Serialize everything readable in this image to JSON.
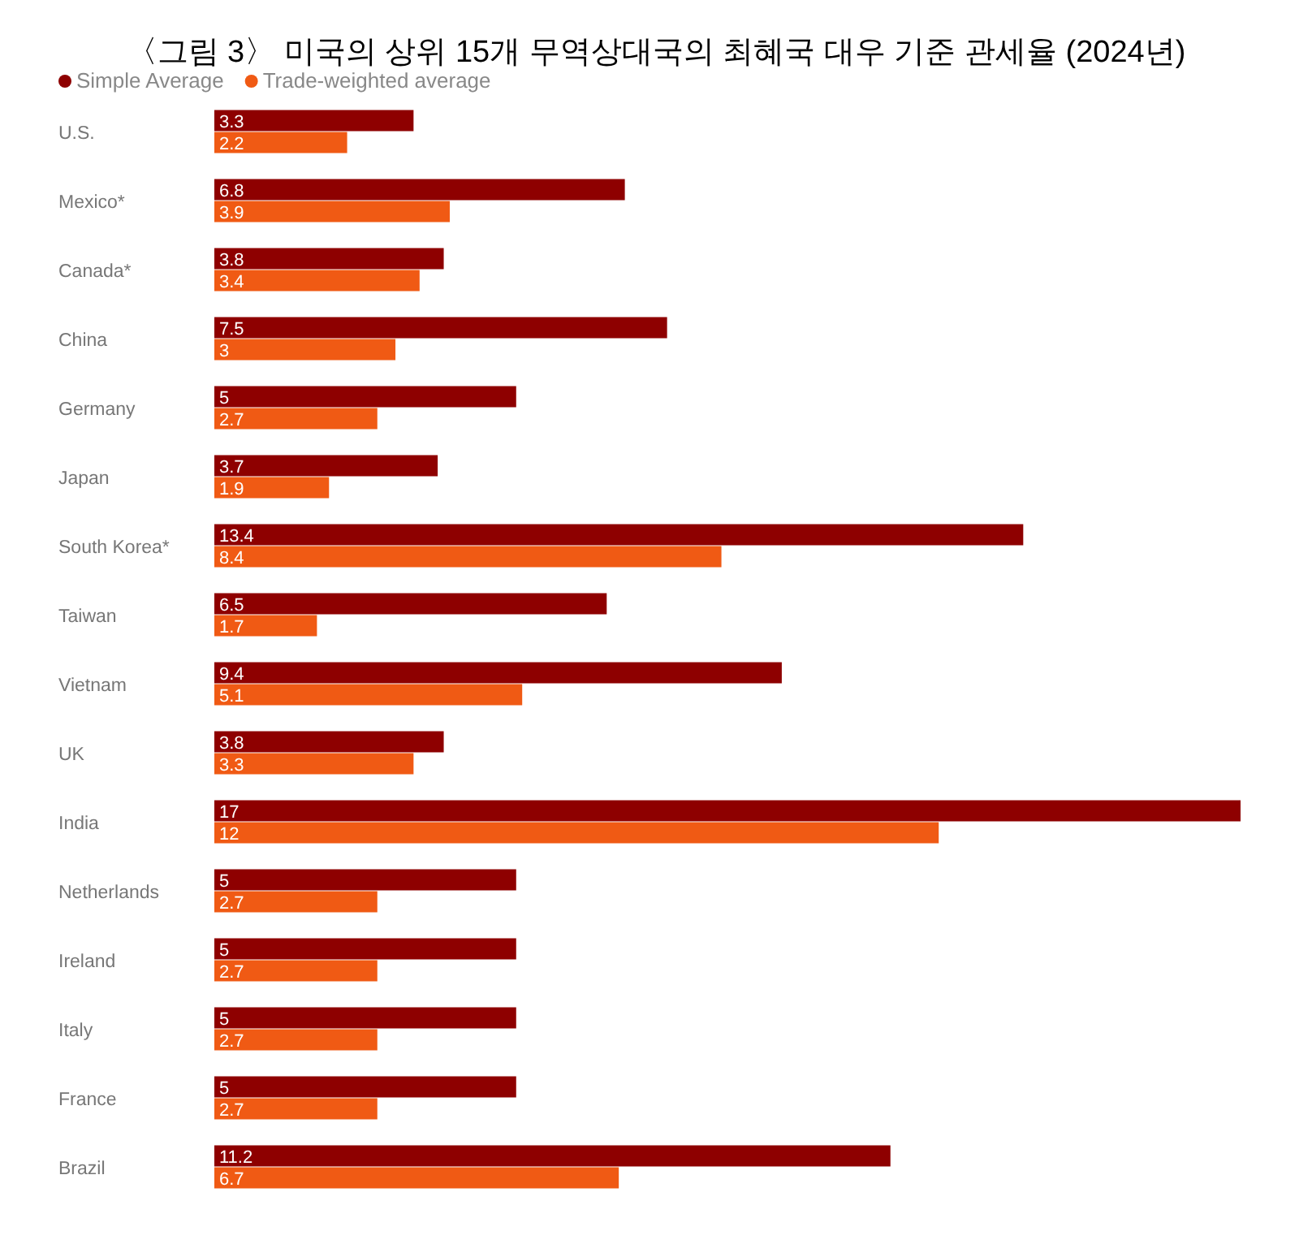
{
  "chart_data": {
    "type": "bar",
    "orientation": "horizontal",
    "title": "〈그림 3〉 미국의 상위 15개 무역상대국의 최혜국 대우 기준 관세율 (2024년)",
    "categories": [
      "U.S.",
      "Mexico*",
      "Canada*",
      "China",
      "Germany",
      "Japan",
      "South Korea*",
      "Taiwan",
      "Vietnam",
      "UK",
      "India",
      "Netherlands",
      "Ireland",
      "Italy",
      "France",
      "Brazil"
    ],
    "series": [
      {
        "name": "Simple Average",
        "color": "#8e0000",
        "values": [
          3.3,
          6.8,
          3.8,
          7.5,
          5,
          3.7,
          13.4,
          6.5,
          9.4,
          3.8,
          17,
          5,
          5,
          5,
          5,
          11.2
        ]
      },
      {
        "name": "Trade-weighted average",
        "color": "#f05a14",
        "values": [
          2.2,
          3.9,
          3.4,
          3,
          2.7,
          1.9,
          8.4,
          1.7,
          5.1,
          3.3,
          12,
          2.7,
          2.7,
          2.7,
          2.7,
          6.7
        ]
      }
    ],
    "data_labels": true,
    "legend": "top left",
    "tick_labels": "y"
  }
}
